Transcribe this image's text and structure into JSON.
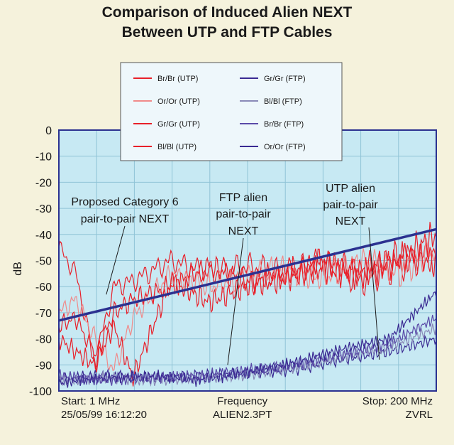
{
  "title_line1": "Comparison of Induced Alien NEXT",
  "title_line2": "Between UTP and FTP Cables",
  "footer": {
    "start": "Start: 1 MHz",
    "datetime": "25/05/99 16:12:20",
    "center_label": "Frequency",
    "center_file": "ALIEN2.3PT",
    "stop": "Stop: 200 MHz",
    "brand": "ZVRL"
  },
  "annotations": {
    "cat6_line1": "Proposed Category 6",
    "cat6_line2": "pair-to-pair NEXT",
    "ftp_line1": "FTP alien",
    "ftp_line2": "pair-to-pair",
    "ftp_line3": "NEXT",
    "utp_line1": "UTP alien",
    "utp_line2": "pair-to-pair",
    "utp_line3": "NEXT"
  },
  "colors": {
    "background": "#f5f2dc",
    "plot_background": "#c7e9f3",
    "utp_red": "#e8202a",
    "ftp_purple": "#3a2a92",
    "category6_line": "#2b3190"
  },
  "chart_data": {
    "type": "line",
    "title": "Comparison of Induced Alien NEXT Between UTP and FTP Cables",
    "xlabel": "Frequency",
    "ylabel": "dB",
    "xlim": [
      1,
      200
    ],
    "ylim": [
      -100,
      0
    ],
    "yticks": [
      0,
      -10,
      -20,
      -30,
      -40,
      -50,
      -60,
      -70,
      -80,
      -90,
      -100
    ],
    "grid": true,
    "legend_position": "top-center",
    "legend": [
      {
        "name": "Br/Br (UTP)",
        "color": "#e8202a"
      },
      {
        "name": "Gr/Gr (FTP)",
        "color": "#3a2a92"
      },
      {
        "name": "Or/Or (UTP)",
        "color": "#f08a8a"
      },
      {
        "name": "Bl/Bl (FTP)",
        "color": "#8a8ab8"
      },
      {
        "name": "Gr/Gr (UTP)",
        "color": "#e8202a"
      },
      {
        "name": "Br/Br (FTP)",
        "color": "#5a4aa8"
      },
      {
        "name": "Bl/Bl (UTP)",
        "color": "#e8202a"
      },
      {
        "name": "Or/Or (FTP)",
        "color": "#3a2a92"
      }
    ],
    "reference_line": {
      "x": [
        1,
        200
      ],
      "y": [
        -73,
        -38
      ]
    },
    "series": [
      {
        "name": "Br/Br (UTP)",
        "x": [
          1,
          10,
          20,
          30,
          40,
          60,
          80,
          100,
          120,
          140,
          160,
          180,
          200
        ],
        "y": [
          -45,
          -55,
          -89,
          -60,
          -58,
          -50,
          -55,
          -52,
          -55,
          -50,
          -58,
          -52,
          -47
        ]
      },
      {
        "name": "Or/Or (UTP)",
        "x": [
          1,
          10,
          20,
          30,
          40,
          60,
          80,
          100,
          120,
          140,
          160,
          180,
          200
        ],
        "y": [
          -70,
          -65,
          -80,
          -92,
          -72,
          -55,
          -60,
          -56,
          -53,
          -57,
          -50,
          -55,
          -45
        ]
      },
      {
        "name": "Gr/Gr (UTP)",
        "x": [
          1,
          10,
          20,
          30,
          40,
          60,
          80,
          100,
          120,
          140,
          160,
          180,
          200
        ],
        "y": [
          -75,
          -72,
          -87,
          -70,
          -65,
          -60,
          -52,
          -58,
          -55,
          -50,
          -54,
          -48,
          -50
        ]
      },
      {
        "name": "Bl/Bl (UTP)",
        "x": [
          1,
          10,
          20,
          30,
          40,
          60,
          80,
          100,
          120,
          140,
          160,
          180,
          200
        ],
        "y": [
          -80,
          -85,
          -90,
          -75,
          -95,
          -58,
          -66,
          -60,
          -57,
          -53,
          -56,
          -50,
          -40
        ]
      },
      {
        "name": "Gr/Gr (FTP)",
        "x": [
          1,
          25,
          50,
          75,
          100,
          125,
          150,
          175,
          200
        ],
        "y": [
          -95,
          -94,
          -95,
          -94,
          -93,
          -92,
          -88,
          -85,
          -80
        ]
      },
      {
        "name": "Bl/Bl (FTP)",
        "x": [
          1,
          25,
          50,
          75,
          100,
          125,
          150,
          175,
          200
        ],
        "y": [
          -96,
          -95,
          -96,
          -95,
          -94,
          -91,
          -87,
          -83,
          -76
        ]
      },
      {
        "name": "Br/Br (FTP)",
        "x": [
          1,
          25,
          50,
          75,
          100,
          125,
          150,
          175,
          200
        ],
        "y": [
          -94,
          -96,
          -95,
          -94,
          -92,
          -90,
          -86,
          -82,
          -72
        ]
      },
      {
        "name": "Or/Or (FTP)",
        "x": [
          1,
          25,
          50,
          75,
          100,
          125,
          150,
          175,
          200
        ],
        "y": [
          -97,
          -95,
          -94,
          -96,
          -93,
          -89,
          -84,
          -80,
          -62
        ]
      }
    ]
  }
}
